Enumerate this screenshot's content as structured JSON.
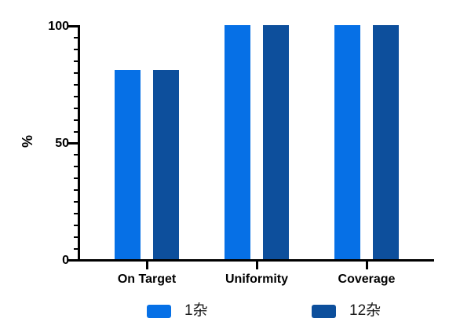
{
  "chart_data": {
    "type": "bar",
    "title": "",
    "categories": [
      "On Target",
      "Uniformity",
      "Coverage"
    ],
    "series": [
      {
        "name": "1杂",
        "color": "#0670E6",
        "values": [
          81,
          100,
          100
        ]
      },
      {
        "name": "12杂",
        "color": "#0D4F9C",
        "values": [
          81,
          100,
          100
        ]
      }
    ],
    "xlabel": "",
    "ylabel": "%",
    "ylim": [
      0,
      100
    ],
    "yticks": [
      "0",
      "50",
      "100"
    ],
    "minor_tick_step": 5,
    "grid": false,
    "legend_position": "bottom",
    "axis_color": "#000000",
    "text_color": "#000000"
  }
}
